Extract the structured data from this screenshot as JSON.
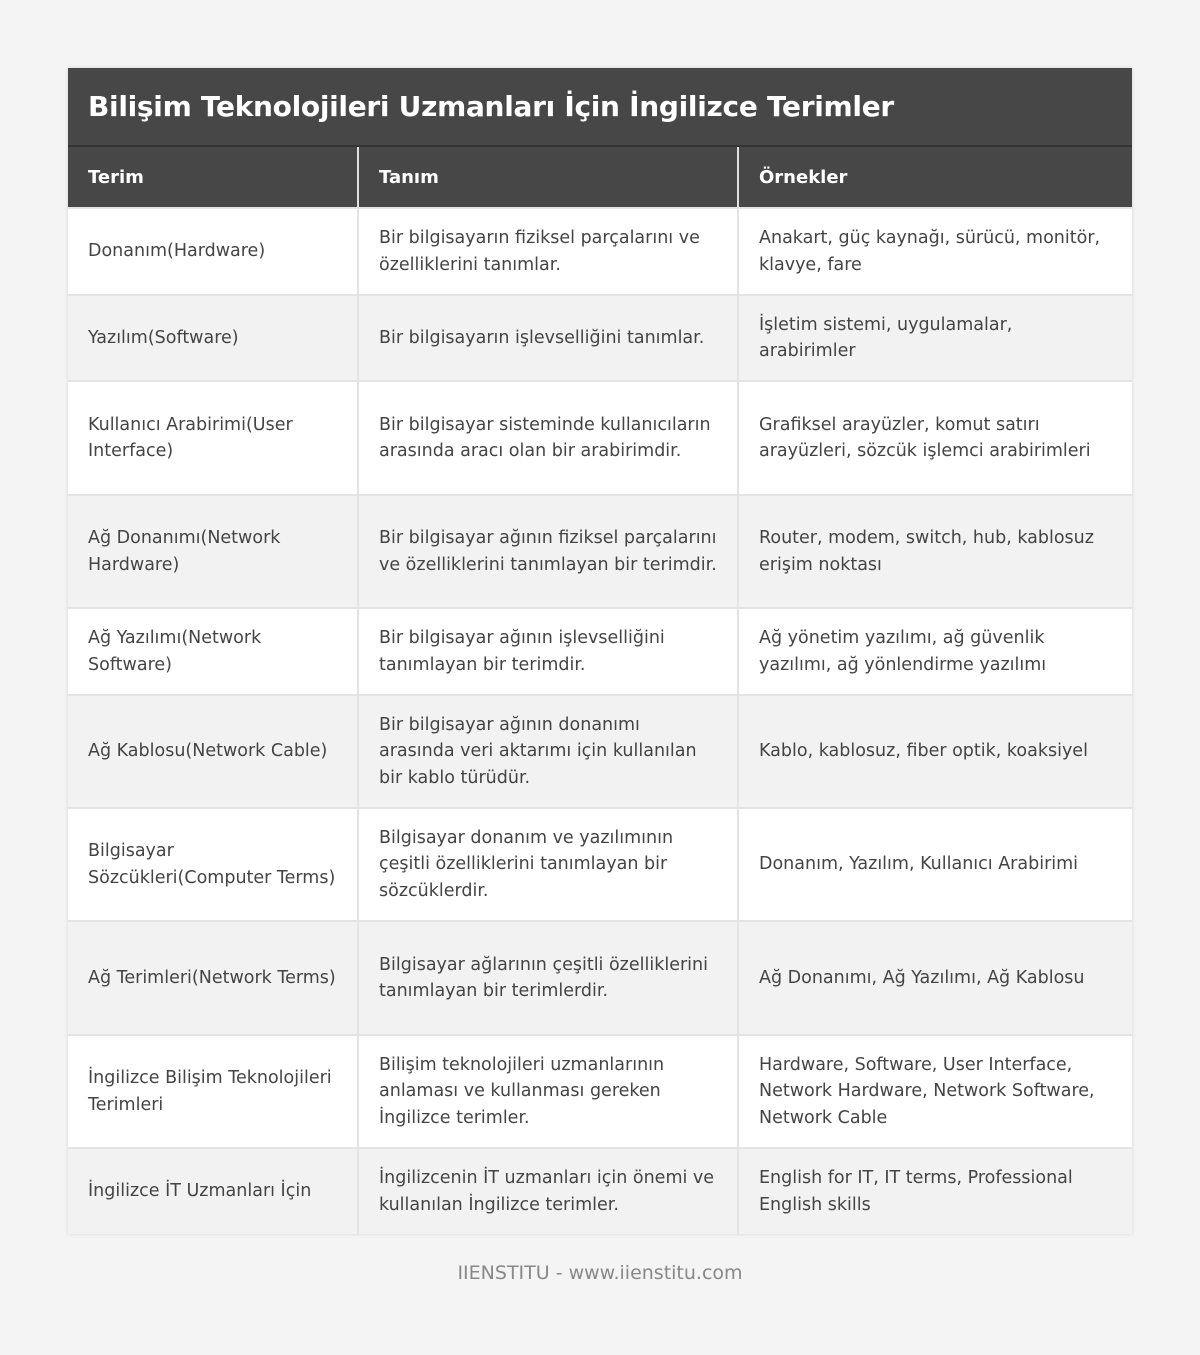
{
  "title": "Bilişim Teknolojileri Uzmanları İçin İngilizce Terimler",
  "columns": [
    "Terim",
    "Tanım",
    "Örnekler"
  ],
  "rows": [
    [
      "Donanım(Hardware)",
      "Bir bilgisayarın fiziksel parçalarını ve özelliklerini tanımlar.",
      "Anakart, güç kaynağı, sürücü, monitör, klavye, fare"
    ],
    [
      "Yazılım(Software)",
      "Bir bilgisayarın işlevselliğini tanımlar.",
      "İşletim sistemi, uygulamalar, arabirimler"
    ],
    [
      "Kullanıcı Arabirimi(User Interface)",
      "Bir bilgisayar sisteminde kullanıcıların arasında aracı olan bir arabirimdir.",
      "Grafiksel arayüzler, komut satırı arayüzleri, sözcük işlemci arabirimleri"
    ],
    [
      "Ağ Donanımı(Network Hardware)",
      "Bir bilgisayar ağının fiziksel parçalarını ve özelliklerini tanımlayan bir terimdir.",
      "Router, modem, switch, hub, kablosuz erişim noktası"
    ],
    [
      "Ağ Yazılımı(Network Software)",
      "Bir bilgisayar ağının işlevselliğini tanımlayan bir terimdir.",
      "Ağ yönetim yazılımı, ağ güvenlik yazılımı, ağ yönlendirme yazılımı"
    ],
    [
      "Ağ Kablosu(Network Cable)",
      "Bir bilgisayar ağının donanımı arasında veri aktarımı için kullanılan bir kablo türüdür.",
      "Kablo, kablosuz, fiber optik, koaksiyel"
    ],
    [
      "Bilgisayar Sözcükleri(Computer Terms)",
      "Bilgisayar donanım ve yazılımının çeşitli özelliklerini tanımlayan bir sözcüklerdir.",
      "Donanım, Yazılım, Kullanıcı Arabirimi"
    ],
    [
      "Ağ Terimleri(Network Terms)",
      "Bilgisayar ağlarının çeşitli özelliklerini tanımlayan bir terimlerdir.",
      "Ağ Donanımı, Ağ Yazılımı, Ağ Kablosu"
    ],
    [
      "İngilizce Bilişim Teknolojileri Terimleri",
      "Bilişim teknolojileri uzmanlarının anlaması ve kullanması gereken İngilizce terimler.",
      "Hardware, Software, User Interface, Network Hardware, Network Software, Network Cable"
    ],
    [
      "İngilizce İT Uzmanları İçin",
      "İngilizcenin İT uzmanları için önemi ve kullanılan İngilizce terimler.",
      "English for IT, IT terms, Professional English skills"
    ]
  ],
  "footer": "IIENSTITU - www.iienstitu.com"
}
